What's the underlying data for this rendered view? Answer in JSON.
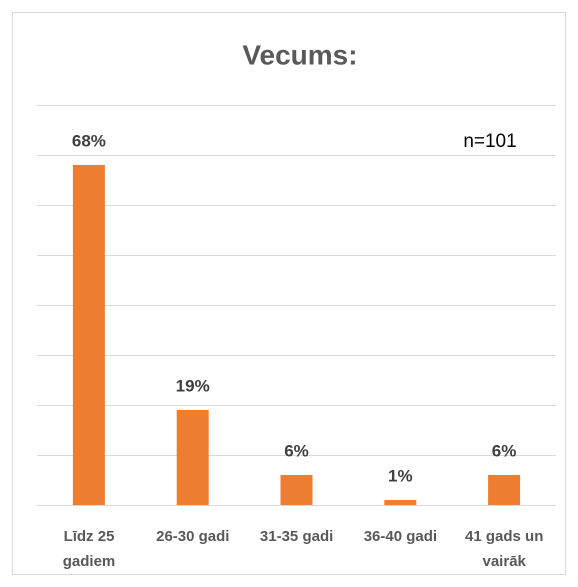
{
  "chart_data": {
    "type": "bar",
    "title": "Vecums:",
    "annotation": "n=101",
    "categories": [
      "Līdz 25 gadiem",
      "26-30 gadi",
      "31-35 gadi",
      "36-40 gadi",
      "41 gads un vairāk"
    ],
    "values": [
      68,
      19,
      6,
      1,
      6
    ],
    "value_labels": [
      "68%",
      "19%",
      "6%",
      "1%",
      "6%"
    ],
    "color": "#ed7d31",
    "ylim": [
      0,
      80
    ],
    "yticks": [
      0,
      10,
      20,
      30,
      40,
      50,
      60,
      70,
      80
    ],
    "grid": true
  }
}
